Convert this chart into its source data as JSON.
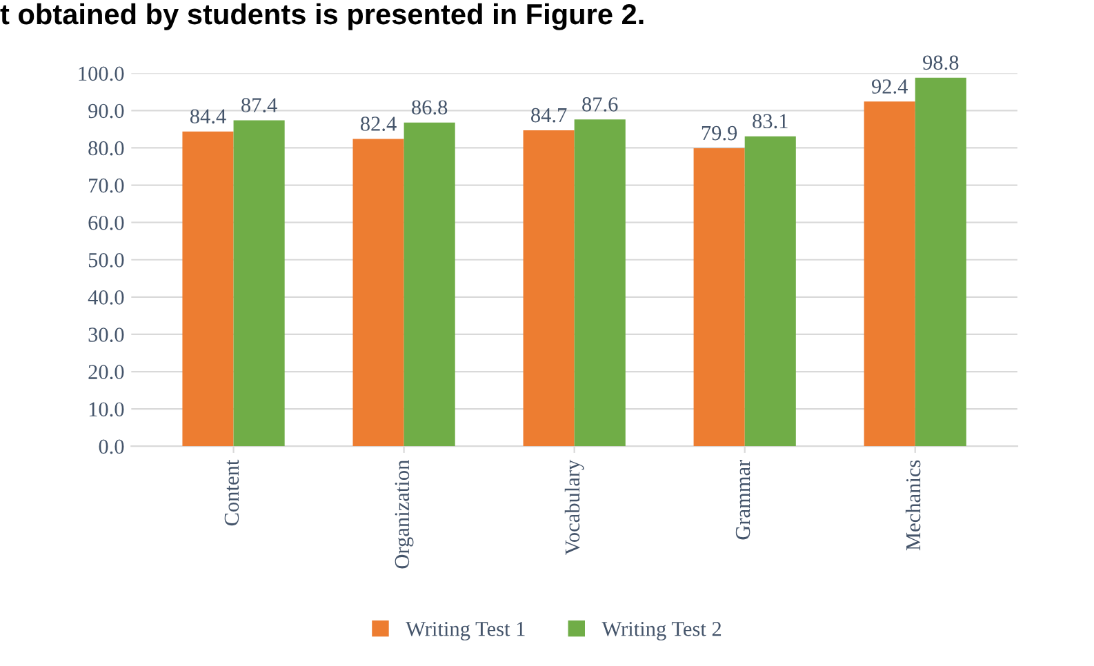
{
  "chart_data": {
    "type": "bar",
    "annotations": [
      "t obtained by students is presented in Figure 2."
    ],
    "categories": [
      "Content",
      "Organization",
      "Vocabulary",
      "Grammar",
      "Mechanics"
    ],
    "series": [
      {
        "name": "Writing Test 1",
        "color": "#ed7d31",
        "values": [
          84.4,
          82.4,
          84.7,
          79.9,
          92.4
        ]
      },
      {
        "name": "Writing Test 2",
        "color": "#70ad47",
        "values": [
          87.4,
          86.8,
          87.6,
          83.1,
          98.8
        ]
      }
    ],
    "ylim": [
      0,
      100
    ],
    "yticks": [
      {
        "value": 0,
        "label": "0.0"
      },
      {
        "value": 10,
        "label": "10.0"
      },
      {
        "value": 20,
        "label": "20.0"
      },
      {
        "value": 30,
        "label": "30.0"
      },
      {
        "value": 40,
        "label": "40.0"
      },
      {
        "value": 50,
        "label": "50.0"
      },
      {
        "value": 60,
        "label": "60.0"
      },
      {
        "value": 70,
        "label": "70.0"
      },
      {
        "value": 80,
        "label": "80.0"
      },
      {
        "value": 90,
        "label": "90.0"
      },
      {
        "value": 100,
        "label": "100.0"
      }
    ],
    "grid": "y",
    "legend": "bottom",
    "data_labels": true
  }
}
